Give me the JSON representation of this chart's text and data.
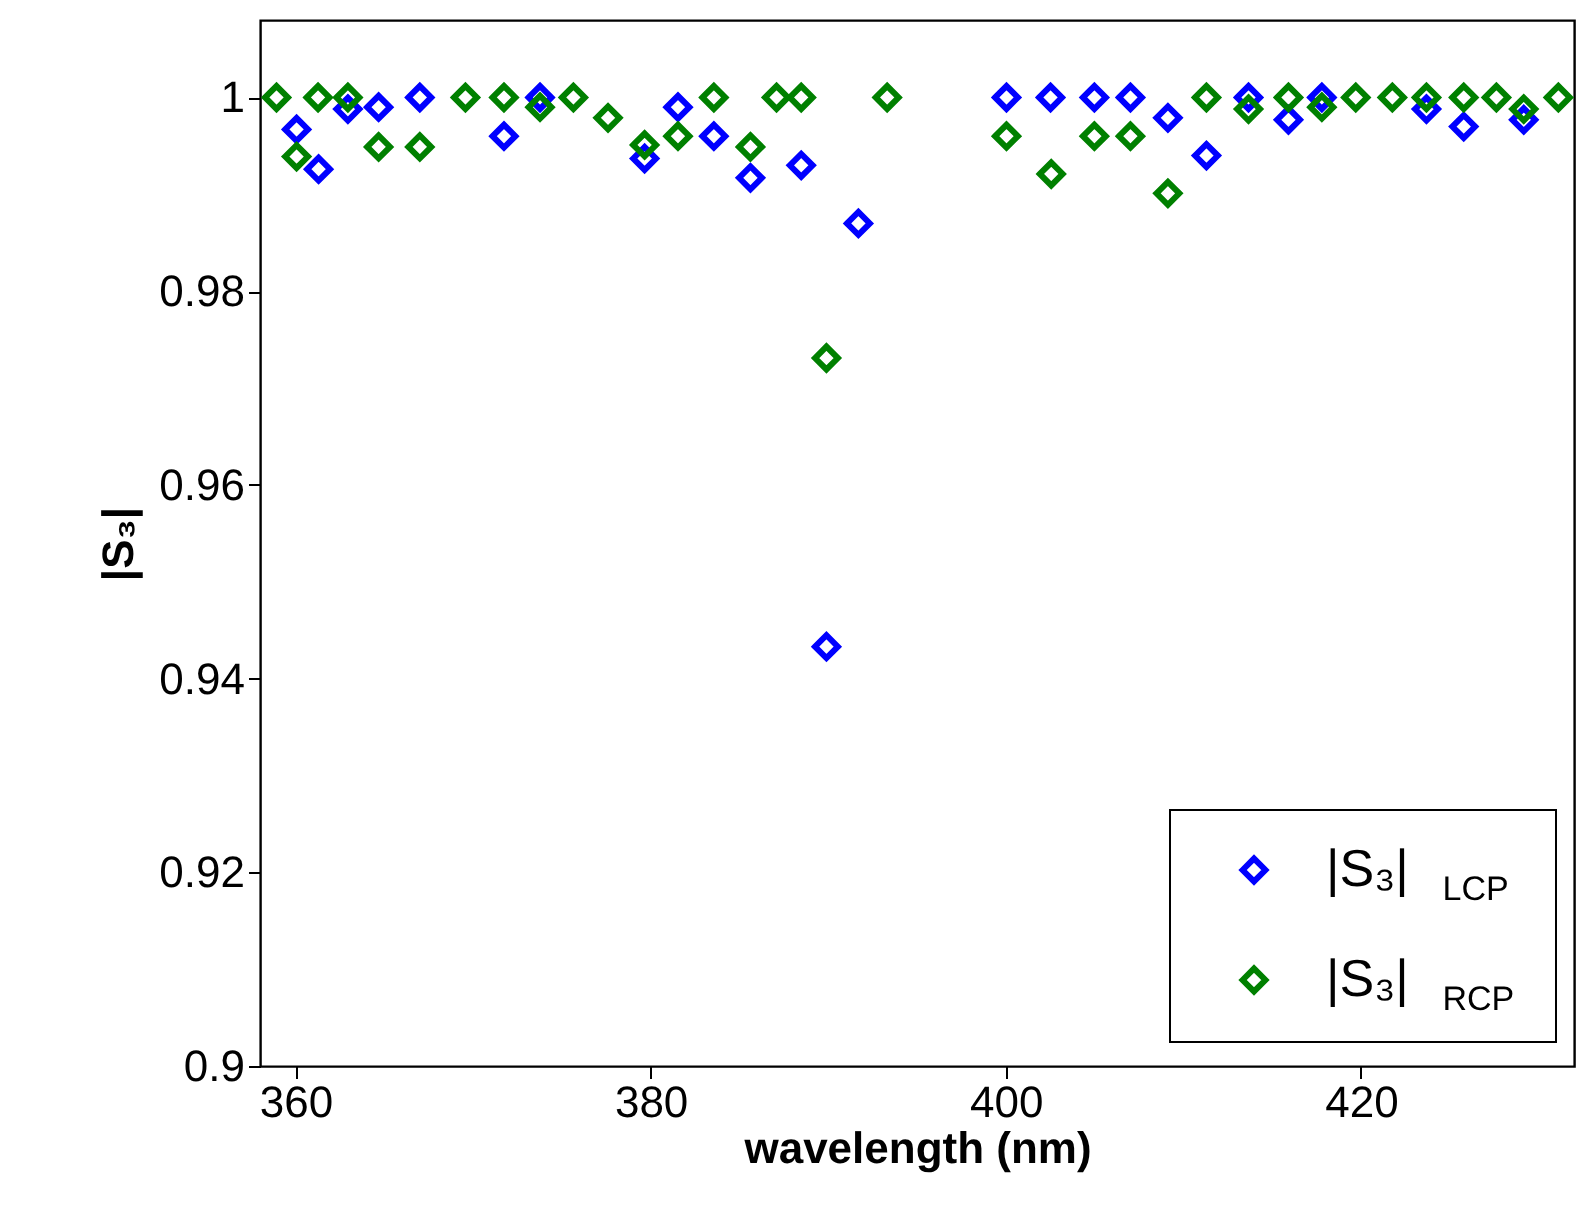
{
  "chart_data": {
    "type": "scatter",
    "xlabel": "wavelength (nm)",
    "ylabel": "|S₃|",
    "xlim": [
      358,
      432
    ],
    "ylim": [
      0.9,
      1.008
    ],
    "xticks": [
      360,
      380,
      400,
      420
    ],
    "yticks": [
      0.9,
      0.92,
      0.94,
      0.96,
      0.98,
      1
    ],
    "marker": "diamond",
    "grid": false,
    "legend": "bottom right",
    "series": [
      {
        "name": "|S₃|$_{LCP}$",
        "color": "#0000ff",
        "x": [
          360.06,
          361.3,
          362.95,
          364.68,
          367.0,
          371.74,
          373.77,
          379.66,
          381.54,
          383.56,
          385.62,
          388.48,
          389.9,
          391.7,
          400.04,
          402.52,
          404.99,
          407.02,
          409.13,
          411.3,
          413.67,
          415.92,
          417.8,
          423.69,
          425.79,
          429.17
        ],
        "values": [
          0.9967,
          0.9926,
          0.9988,
          0.999,
          1.0,
          0.996,
          1.0,
          0.9937,
          0.999,
          0.996,
          0.9917,
          0.993,
          0.9433,
          0.987,
          1.0,
          1.0,
          1.0,
          1.0,
          0.9979,
          0.994,
          1.0,
          0.9977,
          1.0,
          0.9988,
          0.997,
          0.9977
        ]
      },
      {
        "name": "|S₃|$_{RCP}$",
        "color": "#008000",
        "x": [
          358.93,
          360.06,
          361.27,
          362.95,
          364.68,
          367.0,
          369.57,
          371.74,
          373.77,
          375.65,
          377.6,
          379.66,
          381.54,
          383.56,
          385.62,
          387.09,
          388.48,
          389.9,
          393.32,
          400.04,
          402.56,
          404.99,
          407.02,
          409.13,
          411.3,
          413.67,
          415.92,
          417.8,
          419.71,
          421.77,
          423.69,
          425.79,
          427.63,
          429.17,
          431.12
        ],
        "values": [
          1.0,
          0.9939,
          1.0,
          1.0,
          0.9949,
          0.9949,
          1.0,
          1.0,
          0.999,
          1.0,
          0.9979,
          0.9951,
          0.996,
          1.0,
          0.9949,
          1.0,
          1.0,
          0.9731,
          1.0,
          0.996,
          0.9921,
          0.996,
          0.996,
          0.9901,
          1.0,
          0.9988,
          1.0,
          0.999,
          1.0,
          1.0,
          1.0,
          1.0,
          1.0,
          0.9988,
          1.0
        ]
      }
    ]
  }
}
